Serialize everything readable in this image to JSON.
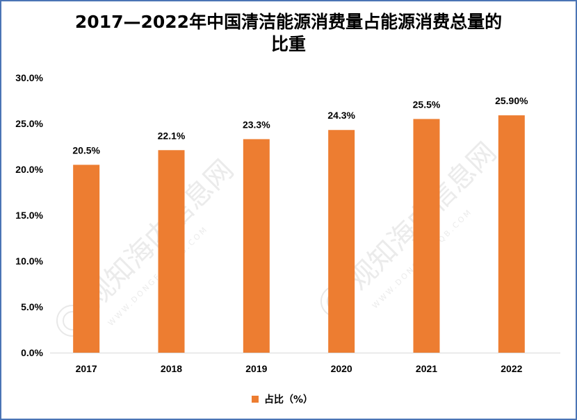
{
  "chart_data": {
    "type": "bar",
    "title_line1": "2017—2022年中国清洁能源消费量占能源消费总量的",
    "title_line2": "比重",
    "categories": [
      "2017",
      "2018",
      "2019",
      "2020",
      "2021",
      "2022"
    ],
    "series": [
      {
        "name": "占比（%）",
        "values": [
          20.5,
          22.1,
          23.3,
          24.3,
          25.5,
          25.9
        ],
        "value_labels": [
          "20.5%",
          "22.1%",
          "23.3%",
          "24.3%",
          "25.5%",
          "25.90%"
        ],
        "color": "#ed7d31"
      }
    ],
    "ylim": [
      0,
      30
    ],
    "yticks": [
      "0.0%",
      "5.0%",
      "10.0%",
      "15.0%",
      "20.0%",
      "25.0%",
      "30.0%"
    ],
    "grid": false,
    "legend": "bottom-center"
  },
  "watermark": {
    "text": "观知海内信息网",
    "url": "WWW.DONGFANGQB.COM"
  }
}
